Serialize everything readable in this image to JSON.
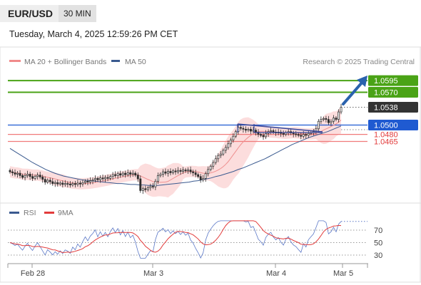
{
  "header": {
    "symbol": "EUR/USD",
    "timeframe": "30 MIN",
    "datetime": "Tuesday, March 4, 2025 12:59:26 PM CET"
  },
  "legend": {
    "ma20_bb": "MA 20 + Bollinger Bands",
    "ma50": "MA 50",
    "rsi": "RSI",
    "rsi_ma": "9MA"
  },
  "credit": "Research © 2025 Trading Central",
  "colors": {
    "green": "#4aa316",
    "blue": "#1f5ad1",
    "red": "#e23b3b",
    "bb_fill": "#fcd9d9",
    "ma50": "#3a5a8f",
    "candle": "#2c2c2c",
    "arrow": "#2a62ad"
  },
  "chart_data": {
    "type": "candlestick",
    "x_ticks": [
      "Feb 28",
      "Mar 3",
      "Mar 4",
      "Mar 5"
    ],
    "levels": [
      {
        "value": 1.0595,
        "label": "1.0595",
        "style": "green"
      },
      {
        "value": 1.057,
        "label": "1.0570",
        "style": "green"
      },
      {
        "value": 1.0538,
        "label": "1.0538",
        "style": "current"
      },
      {
        "value": 1.05,
        "label": "1.0500",
        "style": "blue"
      },
      {
        "value": 1.048,
        "label": "1.0480",
        "style": "red"
      },
      {
        "value": 1.0465,
        "label": "1.0465",
        "style": "red"
      }
    ],
    "price_range": [
      1.035,
      1.0618
    ],
    "close": [
      1.04,
      1.0398,
      1.0395,
      1.0397,
      1.0392,
      1.0388,
      1.0392,
      1.0395,
      1.039,
      1.0386,
      1.039,
      1.0393,
      1.0389,
      1.0384,
      1.0378,
      1.0382,
      1.0379,
      1.0375,
      1.0377,
      1.0374,
      1.0376,
      1.0373,
      1.0375,
      1.0374,
      1.0372,
      1.0375,
      1.0373,
      1.0376,
      1.0374,
      1.0377,
      1.038,
      1.0378,
      1.0381,
      1.0383,
      1.0386,
      1.0383,
      1.0387,
      1.0385,
      1.0388,
      1.0386,
      1.039,
      1.0394,
      1.0392,
      1.0396,
      1.0393,
      1.0397,
      1.0394,
      1.0398,
      1.0395,
      1.0397,
      1.0393,
      1.0385,
      1.036,
      1.0364,
      1.0362,
      1.0366,
      1.0369,
      1.0368,
      1.038,
      1.0392,
      1.0395,
      1.04,
      1.0397,
      1.0401,
      1.0398,
      1.0402,
      1.04,
      1.0403,
      1.0401,
      1.0404,
      1.0402,
      1.0404,
      1.04,
      1.0398,
      1.0394,
      1.039,
      1.0383,
      1.0386,
      1.0396,
      1.0405,
      1.0412,
      1.042,
      1.0428,
      1.0435,
      1.0438,
      1.0446,
      1.0452,
      1.046,
      1.0468,
      1.0476,
      1.0486,
      1.0495,
      1.0493,
      1.0491,
      1.0489,
      1.0491,
      1.0487,
      1.0489,
      1.0485,
      1.048,
      1.0478,
      1.0475,
      1.0482,
      1.0486,
      1.0488,
      1.0485,
      1.0483,
      1.0485,
      1.0482,
      1.048,
      1.0484,
      1.0486,
      1.0483,
      1.0481,
      1.048,
      1.0478,
      1.0476,
      1.048,
      1.0478,
      1.0482,
      1.0484,
      1.0486,
      1.0492,
      1.0508,
      1.0512,
      1.0514,
      1.0512,
      1.0505,
      1.0508,
      1.0515,
      1.0512,
      1.0528,
      1.0538
    ],
    "ma50": [
      1.045,
      1.0444,
      1.0438,
      1.0432,
      1.0426,
      1.042,
      1.0415,
      1.041,
      1.0405,
      1.0401,
      1.0397,
      1.0394,
      1.0391,
      1.0389,
      1.0387,
      1.0385,
      1.0383,
      1.0382,
      1.0381,
      1.038,
      1.0379,
      1.0378,
      1.0377,
      1.0376,
      1.0375,
      1.0375,
      1.0374,
      1.0373,
      1.0373,
      1.0372,
      1.0372,
      1.0371,
      1.0371,
      1.0371,
      1.0372,
      1.0373,
      1.0374,
      1.0375,
      1.0376,
      1.0377,
      1.0378,
      1.038,
      1.0381,
      1.0383,
      1.0385,
      1.0387,
      1.039,
      1.0392,
      1.0395,
      1.0398,
      1.0401,
      1.0405,
      1.0408,
      1.0412,
      1.0416,
      1.042,
      1.0424,
      1.0428,
      1.0433,
      1.0438,
      1.0443,
      1.0448,
      1.0453,
      1.0458,
      1.0462,
      1.0466,
      1.047,
      1.0474,
      1.0477,
      1.048,
      1.0483,
      1.0486,
      1.049,
      1.0494,
      1.0498
    ],
    "rsi_axis": [
      70,
      50,
      30
    ]
  }
}
